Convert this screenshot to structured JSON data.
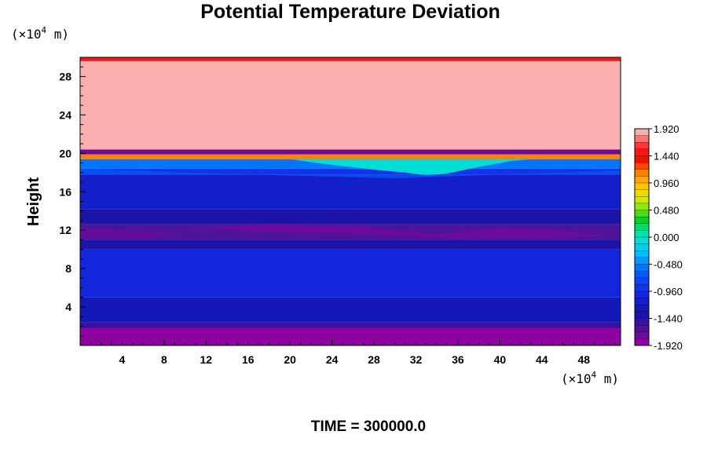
{
  "chart_data": {
    "type": "heatmap",
    "title": "Potential Temperature Deviation",
    "ylabel": "Height",
    "xlabel": "",
    "y_unit": {
      "prefix": "(×10",
      "exp": "4",
      "suffix": " m)"
    },
    "x_unit": {
      "prefix": "(×10",
      "exp": "4",
      "suffix": " m)"
    },
    "xlim": [
      0,
      51.5
    ],
    "ylim": [
      0,
      30
    ],
    "x_ticks": [
      4,
      8,
      12,
      16,
      20,
      24,
      28,
      32,
      36,
      40,
      44,
      48
    ],
    "y_ticks": [
      4,
      8,
      12,
      16,
      20,
      24,
      28
    ],
    "time_label": "TIME = 300000.0",
    "colorbar": {
      "min": -1.92,
      "max": 1.92,
      "levels": 32,
      "tick_labels": [
        "1.920",
        "1.440",
        "0.960",
        "0.480",
        "0.000",
        "-0.480",
        "-0.960",
        "-1.440",
        "-1.920"
      ],
      "tick_values": [
        1.92,
        1.44,
        0.96,
        0.48,
        0.0,
        -0.48,
        -0.96,
        -1.44,
        -1.92
      ]
    },
    "field_bands": [
      {
        "y0": 0.0,
        "y1": 1.8,
        "value": -1.92
      },
      {
        "y0": 1.8,
        "y1": 2.4,
        "value": -1.6
      },
      {
        "y0": 2.4,
        "y1": 5.0,
        "value": -1.3
      },
      {
        "y0": 5.0,
        "y1": 10.0,
        "value": -1.05
      },
      {
        "y0": 10.0,
        "y1": 11.0,
        "value": -1.45
      },
      {
        "y0": 11.0,
        "y1": 12.6,
        "value": -1.7
      },
      {
        "y0": 12.6,
        "y1": 14.2,
        "value": -1.45
      },
      {
        "y0": 14.2,
        "y1": 17.8,
        "value": -1.2
      },
      {
        "y0": 17.8,
        "y1": 18.4,
        "value": -0.9
      },
      {
        "y0": 18.4,
        "y1": 19.4,
        "value": -0.55
      },
      {
        "y0": 19.4,
        "y1": 19.9,
        "value": 1.2
      },
      {
        "y0": 19.9,
        "y1": 20.4,
        "value": -1.8
      },
      {
        "y0": 20.4,
        "y1": 29.6,
        "value": 1.92
      },
      {
        "y0": 29.6,
        "y1": 30.0,
        "value": 1.6
      }
    ]
  }
}
